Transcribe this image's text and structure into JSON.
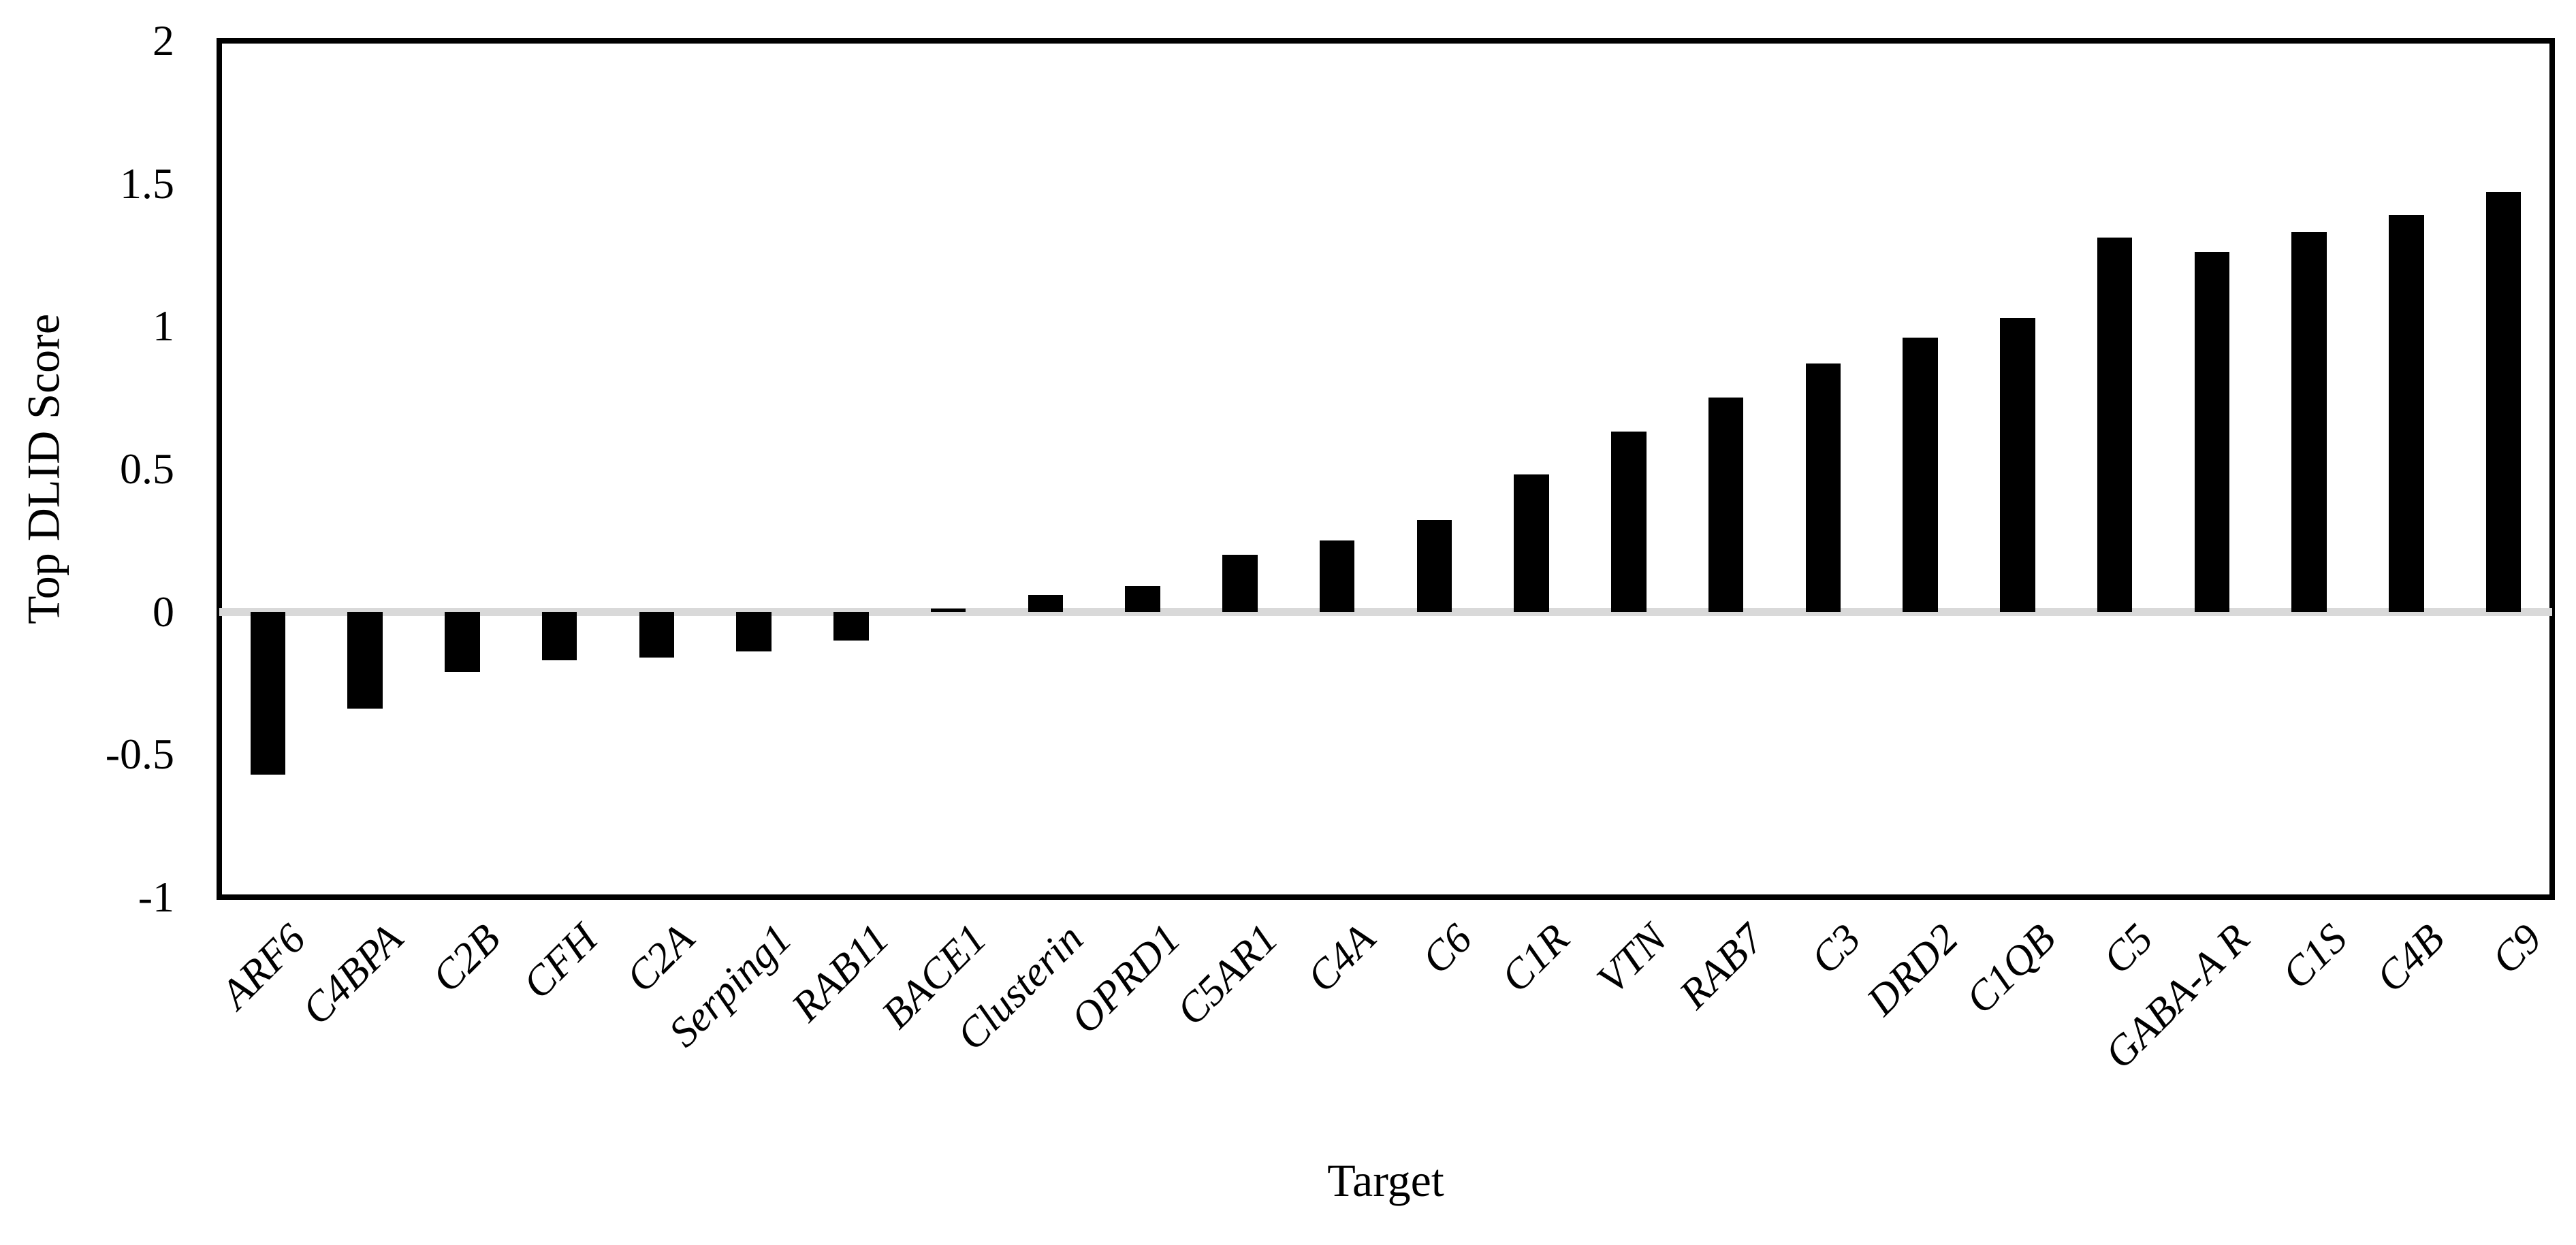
{
  "figure": {
    "background_color": "#ffffff",
    "bar_color": "#000000",
    "axis_frame_color": "#000000",
    "zero_gridline_color": "#d9d9d9"
  },
  "chart_data": {
    "type": "bar",
    "title": "",
    "xlabel": "Target",
    "ylabel": "Top DLID Score",
    "categories": [
      "ARF6",
      "C4BPA",
      "C2B",
      "CFH",
      "C2A",
      "Serping1",
      "RAB11",
      "BACE1",
      "Clusterin",
      "OPRD1",
      "C5AR1",
      "C4A",
      "C6",
      "C1R",
      "VTN",
      "RAB7",
      "C3",
      "DRD2",
      "C1QB",
      "C5",
      "GABA-A R",
      "C1S",
      "C4B",
      "C9"
    ],
    "values": [
      -0.57,
      -0.34,
      -0.21,
      -0.17,
      -0.16,
      -0.14,
      -0.1,
      0.01,
      0.06,
      0.09,
      0.2,
      0.25,
      0.32,
      0.48,
      0.63,
      0.75,
      0.87,
      0.96,
      1.03,
      1.31,
      1.26,
      1.33,
      1.39,
      1.47
    ],
    "series_name": "Top DLID Score",
    "ylim": [
      -1,
      2
    ],
    "yticks": [
      2,
      1.5,
      1,
      0.5,
      0,
      -0.5,
      -1
    ],
    "ytick_labels": [
      "2",
      "1.5",
      "1",
      "0.5",
      "0",
      "-0.5",
      "-1"
    ],
    "grid": "horizontal-zero-line-only",
    "legend": "none",
    "bar_width_fraction": 0.36,
    "x_label_rotation_deg": 45
  }
}
